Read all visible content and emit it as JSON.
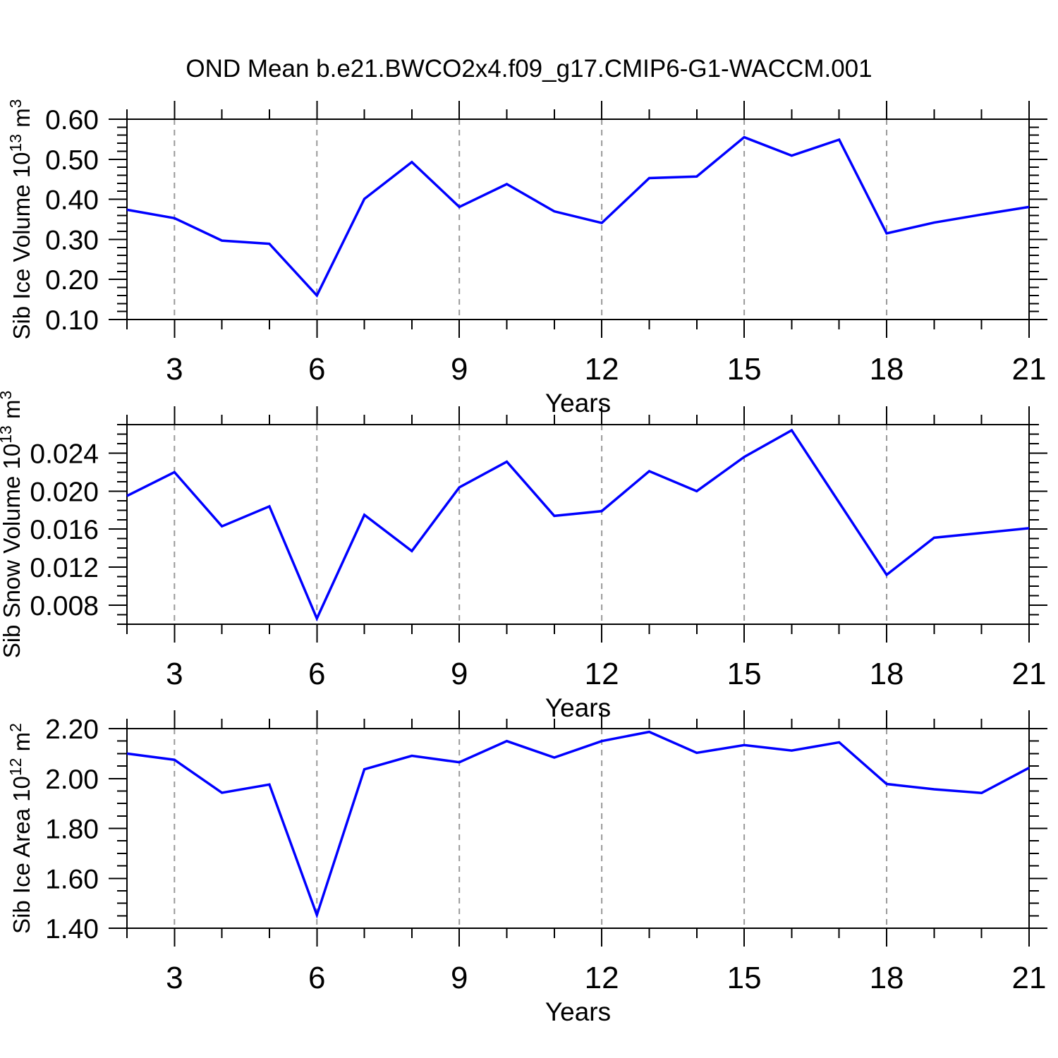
{
  "colors": {
    "line": "#0000ff",
    "grid": "#999999",
    "frame": "#000000",
    "text": "#000000",
    "background": "#ffffff"
  },
  "chart_data": {
    "type": "line",
    "title": "OND Mean b.e21.BWCO2x4.f09_g17.CMIP6-G1-WACCM.001",
    "xlabel": "Years",
    "xlim": [
      2,
      21
    ],
    "x": [
      2,
      3,
      4,
      5,
      6,
      7,
      8,
      9,
      10,
      11,
      12,
      13,
      14,
      15,
      16,
      17,
      18,
      19,
      20,
      21
    ],
    "x_major_ticks": [
      3,
      6,
      9,
      12,
      15,
      18,
      21
    ],
    "x_minor_step": 1,
    "x_gridlines": [
      3,
      6,
      9,
      12,
      15,
      18
    ],
    "legend": "none",
    "grid": "vertical-dashed",
    "panels": [
      {
        "id": "sib-ice-volume",
        "ylabel_text": "Sib Ice Volume 10¹³ m³",
        "ylabel_segments": [
          {
            "text": "Sib Ice Volume 10"
          },
          {
            "text": "13",
            "sup": true
          },
          {
            "text": " m"
          },
          {
            "text": "3",
            "sup": true
          }
        ],
        "ylim": [
          0.1,
          0.6
        ],
        "y_major_ticks": [
          0.1,
          0.2,
          0.3,
          0.4,
          0.5,
          0.6
        ],
        "y_tick_labels": [
          "0.10",
          "0.20",
          "0.30",
          "0.40",
          "0.50",
          "0.60"
        ],
        "y_minor_step": 0.02,
        "values": [
          0.374,
          0.353,
          0.297,
          0.289,
          0.16,
          0.401,
          0.493,
          0.381,
          0.438,
          0.37,
          0.341,
          0.453,
          0.457,
          0.555,
          0.509,
          0.549,
          0.315,
          0.342,
          0.362,
          0.381
        ]
      },
      {
        "id": "sib-snow-volume",
        "ylabel_text": "Sib Snow Volume 10¹³ m³",
        "ylabel_segments": [
          {
            "text": "Sib Snow Volume 10"
          },
          {
            "text": "13",
            "sup": true
          },
          {
            "text": " m"
          },
          {
            "text": "3",
            "sup": true
          }
        ],
        "ylim": [
          0.006,
          0.027
        ],
        "y_major_ticks": [
          0.008,
          0.012,
          0.016,
          0.02,
          0.024
        ],
        "y_tick_labels": [
          "0.008",
          "0.012",
          "0.016",
          "0.020",
          "0.024"
        ],
        "y_minor_step": 0.001,
        "values": [
          0.0195,
          0.022,
          0.0163,
          0.0184,
          0.0066,
          0.0175,
          0.0137,
          0.0204,
          0.0231,
          0.0174,
          0.0179,
          0.0221,
          0.02,
          0.0236,
          0.0264,
          0.0188,
          0.0112,
          0.0151,
          0.0156,
          0.0161
        ]
      },
      {
        "id": "sib-ice-area",
        "ylabel_text": "Sib Ice Area 10¹² m²",
        "ylabel_segments": [
          {
            "text": "Sib Ice Area 10"
          },
          {
            "text": "12",
            "sup": true
          },
          {
            "text": " m"
          },
          {
            "text": "2",
            "sup": true
          }
        ],
        "ylim": [
          1.4,
          2.2
        ],
        "y_major_ticks": [
          1.4,
          1.6,
          1.8,
          2.0,
          2.2
        ],
        "y_tick_labels": [
          "1.40",
          "1.60",
          "1.80",
          "2.00",
          "2.20"
        ],
        "y_minor_step": 0.05,
        "values": [
          2.1,
          2.075,
          1.943,
          1.976,
          1.453,
          2.037,
          2.091,
          2.065,
          2.15,
          2.084,
          2.15,
          2.187,
          2.103,
          2.134,
          2.112,
          2.145,
          1.978,
          1.957,
          1.942,
          2.043
        ]
      }
    ]
  }
}
